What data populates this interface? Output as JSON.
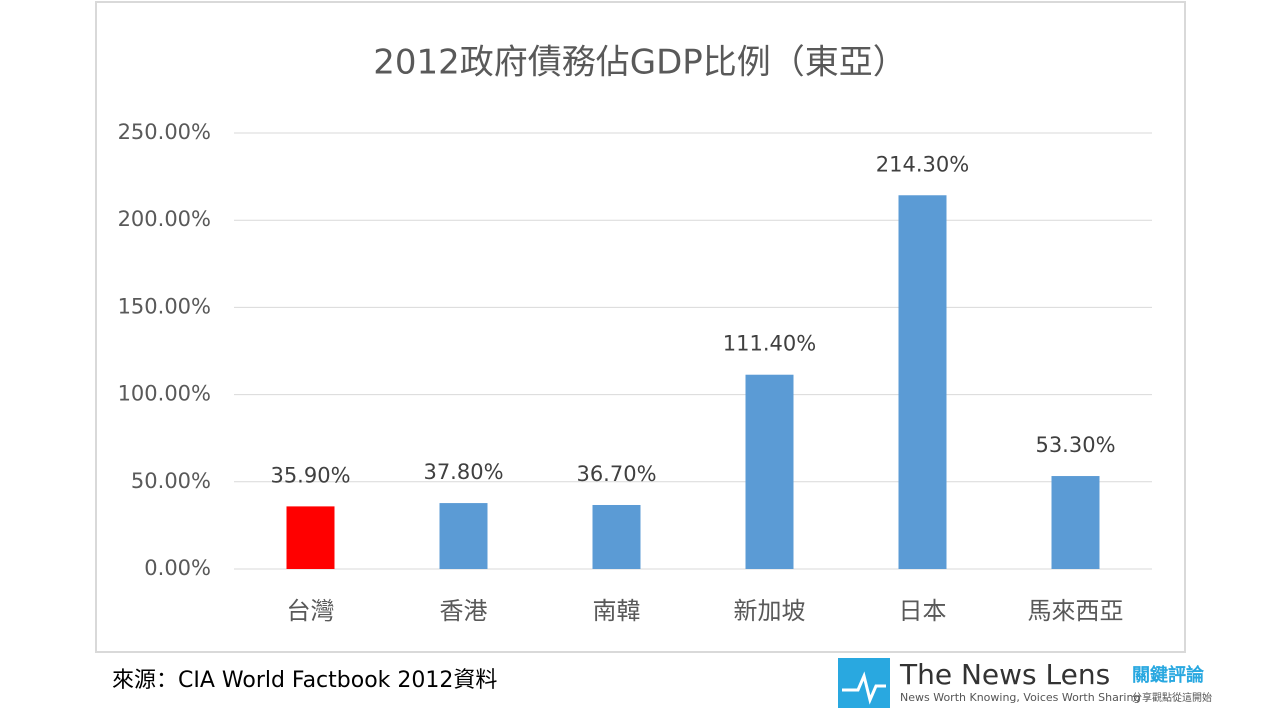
{
  "chart_data": {
    "type": "bar",
    "title": "2012政府債務佔GDP比例（東亞）",
    "categories": [
      "台灣",
      "香港",
      "南韓",
      "新加坡",
      "日本",
      "馬來西亞"
    ],
    "values": [
      35.9,
      37.8,
      36.7,
      111.4,
      214.3,
      53.3
    ],
    "value_labels": [
      "35.90%",
      "37.80%",
      "36.70%",
      "111.40%",
      "214.30%",
      "53.30%"
    ],
    "colors": [
      "#ff0000",
      "#5b9bd5",
      "#5b9bd5",
      "#5b9bd5",
      "#5b9bd5",
      "#5b9bd5"
    ],
    "ylim": [
      0,
      250
    ],
    "yticks": [
      {
        "value": 0,
        "label": "0.00%"
      },
      {
        "value": 50,
        "label": "50.00%"
      },
      {
        "value": 100,
        "label": "100.00%"
      },
      {
        "value": 150,
        "label": "150.00%"
      },
      {
        "value": 200,
        "label": "200.00%"
      },
      {
        "value": 250,
        "label": "250.00%"
      }
    ],
    "grid": true
  },
  "source": "來源：CIA World Factbook 2012資料",
  "logo": {
    "name": "The News Lens",
    "name_zh": "關鍵評論",
    "tagline": "News Worth Knowing, Voices Worth Sharing",
    "tagline_zh": "分享觀點從這開始"
  }
}
